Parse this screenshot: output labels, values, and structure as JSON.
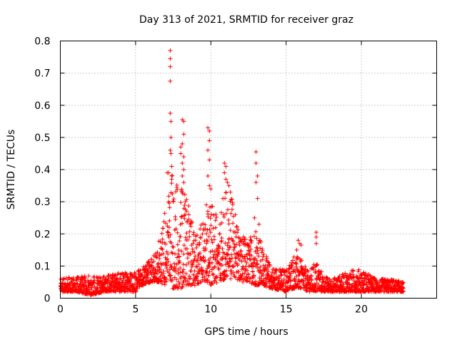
{
  "chart_data": {
    "type": "scatter",
    "title": "Day 313 of 2021, SRMTID for receiver graz",
    "xlabel": "GPS time / hours",
    "ylabel": "SRMTID / TECUs",
    "xlim": [
      0,
      25
    ],
    "ylim": [
      0,
      0.8
    ],
    "xticks": [
      0,
      5,
      10,
      15,
      20
    ],
    "xtick_labels": [
      "0",
      "5",
      "10",
      "15",
      "20"
    ],
    "yticks": [
      0,
      0.1,
      0.2,
      0.3,
      0.4,
      0.5,
      0.6,
      0.7,
      0.8
    ],
    "ytick_labels": [
      "0",
      "0.1",
      "0.2",
      "0.3",
      "0.4",
      "0.5",
      "0.6",
      "0.7",
      "0.8"
    ],
    "grid": true,
    "marker": "+",
    "marker_color": "#ff0000",
    "series": [
      {
        "name": "SRMTID",
        "envelope": [
          {
            "x": 0.0,
            "low": 0.02,
            "high": 0.06
          },
          {
            "x": 1.0,
            "low": 0.02,
            "high": 0.07
          },
          {
            "x": 2.0,
            "low": 0.01,
            "high": 0.07
          },
          {
            "x": 3.0,
            "low": 0.02,
            "high": 0.07
          },
          {
            "x": 4.0,
            "low": 0.02,
            "high": 0.08
          },
          {
            "x": 5.0,
            "low": 0.02,
            "high": 0.08
          },
          {
            "x": 5.5,
            "low": 0.04,
            "high": 0.1
          },
          {
            "x": 6.0,
            "low": 0.05,
            "high": 0.12
          },
          {
            "x": 6.5,
            "low": 0.05,
            "high": 0.17
          },
          {
            "x": 7.0,
            "low": 0.04,
            "high": 0.28
          },
          {
            "x": 7.5,
            "low": 0.03,
            "high": 0.4
          },
          {
            "x": 8.0,
            "low": 0.03,
            "high": 0.35
          },
          {
            "x": 8.5,
            "low": 0.04,
            "high": 0.3
          },
          {
            "x": 9.0,
            "low": 0.04,
            "high": 0.2
          },
          {
            "x": 9.5,
            "low": 0.05,
            "high": 0.25
          },
          {
            "x": 10.0,
            "low": 0.04,
            "high": 0.3
          },
          {
            "x": 10.5,
            "low": 0.05,
            "high": 0.25
          },
          {
            "x": 11.0,
            "low": 0.06,
            "high": 0.34
          },
          {
            "x": 11.5,
            "low": 0.06,
            "high": 0.3
          },
          {
            "x": 12.0,
            "low": 0.05,
            "high": 0.2
          },
          {
            "x": 12.5,
            "low": 0.05,
            "high": 0.18
          },
          {
            "x": 13.0,
            "low": 0.04,
            "high": 0.24
          },
          {
            "x": 13.5,
            "low": 0.04,
            "high": 0.15
          },
          {
            "x": 14.0,
            "low": 0.03,
            "high": 0.1
          },
          {
            "x": 15.0,
            "low": 0.02,
            "high": 0.09
          },
          {
            "x": 15.5,
            "low": 0.03,
            "high": 0.14
          },
          {
            "x": 16.0,
            "low": 0.03,
            "high": 0.12
          },
          {
            "x": 16.5,
            "low": 0.02,
            "high": 0.08
          },
          {
            "x": 17.0,
            "low": 0.02,
            "high": 0.12
          },
          {
            "x": 17.5,
            "low": 0.02,
            "high": 0.07
          },
          {
            "x": 18.0,
            "low": 0.02,
            "high": 0.06
          },
          {
            "x": 19.0,
            "low": 0.02,
            "high": 0.08
          },
          {
            "x": 19.5,
            "low": 0.02,
            "high": 0.09
          },
          {
            "x": 20.0,
            "low": 0.02,
            "high": 0.09
          },
          {
            "x": 21.0,
            "low": 0.02,
            "high": 0.06
          },
          {
            "x": 22.0,
            "low": 0.02,
            "high": 0.06
          },
          {
            "x": 22.8,
            "low": 0.02,
            "high": 0.05
          }
        ],
        "points": [
          [
            7.3,
            0.77
          ],
          [
            7.3,
            0.745
          ],
          [
            7.3,
            0.72
          ],
          [
            7.3,
            0.675
          ],
          [
            7.3,
            0.575
          ],
          [
            7.35,
            0.55
          ],
          [
            7.35,
            0.5
          ],
          [
            7.3,
            0.46
          ],
          [
            7.35,
            0.45
          ],
          [
            7.2,
            0.39
          ],
          [
            7.1,
            0.39
          ],
          [
            7.4,
            0.41
          ],
          [
            7.4,
            0.38
          ],
          [
            7.4,
            0.37
          ],
          [
            8.1,
            0.555
          ],
          [
            8.2,
            0.55
          ],
          [
            8.2,
            0.51
          ],
          [
            8.1,
            0.48
          ],
          [
            8.0,
            0.47
          ],
          [
            8.0,
            0.45
          ],
          [
            8.2,
            0.44
          ],
          [
            8.1,
            0.42
          ],
          [
            8.2,
            0.4
          ],
          [
            8.1,
            0.38
          ],
          [
            8.2,
            0.36
          ],
          [
            8.1,
            0.33
          ],
          [
            8.3,
            0.3
          ],
          [
            9.8,
            0.53
          ],
          [
            9.9,
            0.52
          ],
          [
            9.9,
            0.49
          ],
          [
            9.8,
            0.46
          ],
          [
            9.9,
            0.43
          ],
          [
            9.8,
            0.38
          ],
          [
            9.9,
            0.35
          ],
          [
            10.0,
            0.34
          ],
          [
            9.7,
            0.29
          ],
          [
            9.8,
            0.27
          ],
          [
            10.9,
            0.42
          ],
          [
            11.0,
            0.41
          ],
          [
            10.9,
            0.39
          ],
          [
            11.0,
            0.37
          ],
          [
            11.1,
            0.36
          ],
          [
            11.2,
            0.35
          ],
          [
            11.3,
            0.33
          ],
          [
            10.8,
            0.31
          ],
          [
            13.0,
            0.455
          ],
          [
            13.0,
            0.42
          ],
          [
            13.1,
            0.38
          ],
          [
            13.0,
            0.36
          ],
          [
            13.1,
            0.31
          ],
          [
            12.9,
            0.25
          ],
          [
            13.2,
            0.23
          ],
          [
            15.8,
            0.18
          ],
          [
            15.9,
            0.17
          ],
          [
            16.0,
            0.165
          ],
          [
            15.7,
            0.15
          ],
          [
            17.0,
            0.205
          ],
          [
            17.0,
            0.19
          ],
          [
            17.0,
            0.17
          ]
        ]
      }
    ]
  }
}
